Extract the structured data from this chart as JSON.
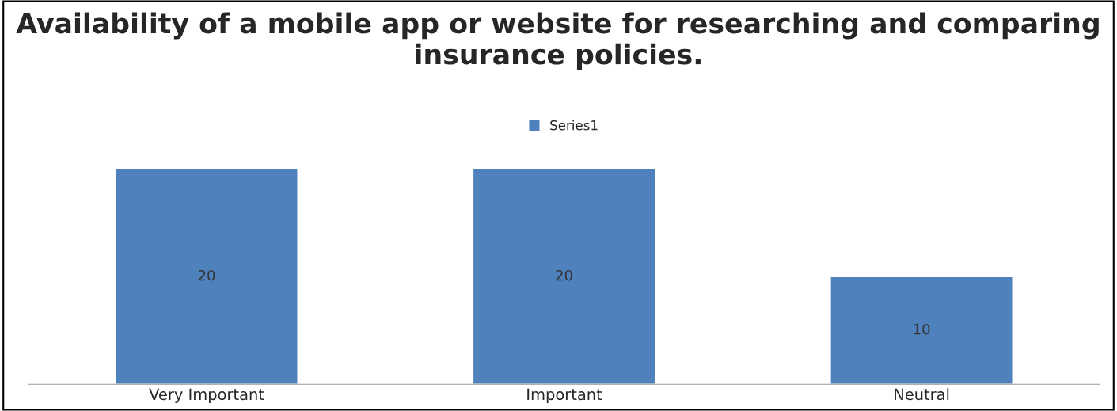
{
  "chart_data": {
    "type": "bar",
    "title": "Availability of a mobile app or website for researching and comparing insurance policies.",
    "categories": [
      "Very Important",
      "Important",
      "Neutral"
    ],
    "series": [
      {
        "name": "Series1",
        "color": "#4f81bd",
        "values": [
          20,
          20,
          10
        ]
      }
    ],
    "data_labels": true,
    "legend": "top",
    "grid": false
  }
}
